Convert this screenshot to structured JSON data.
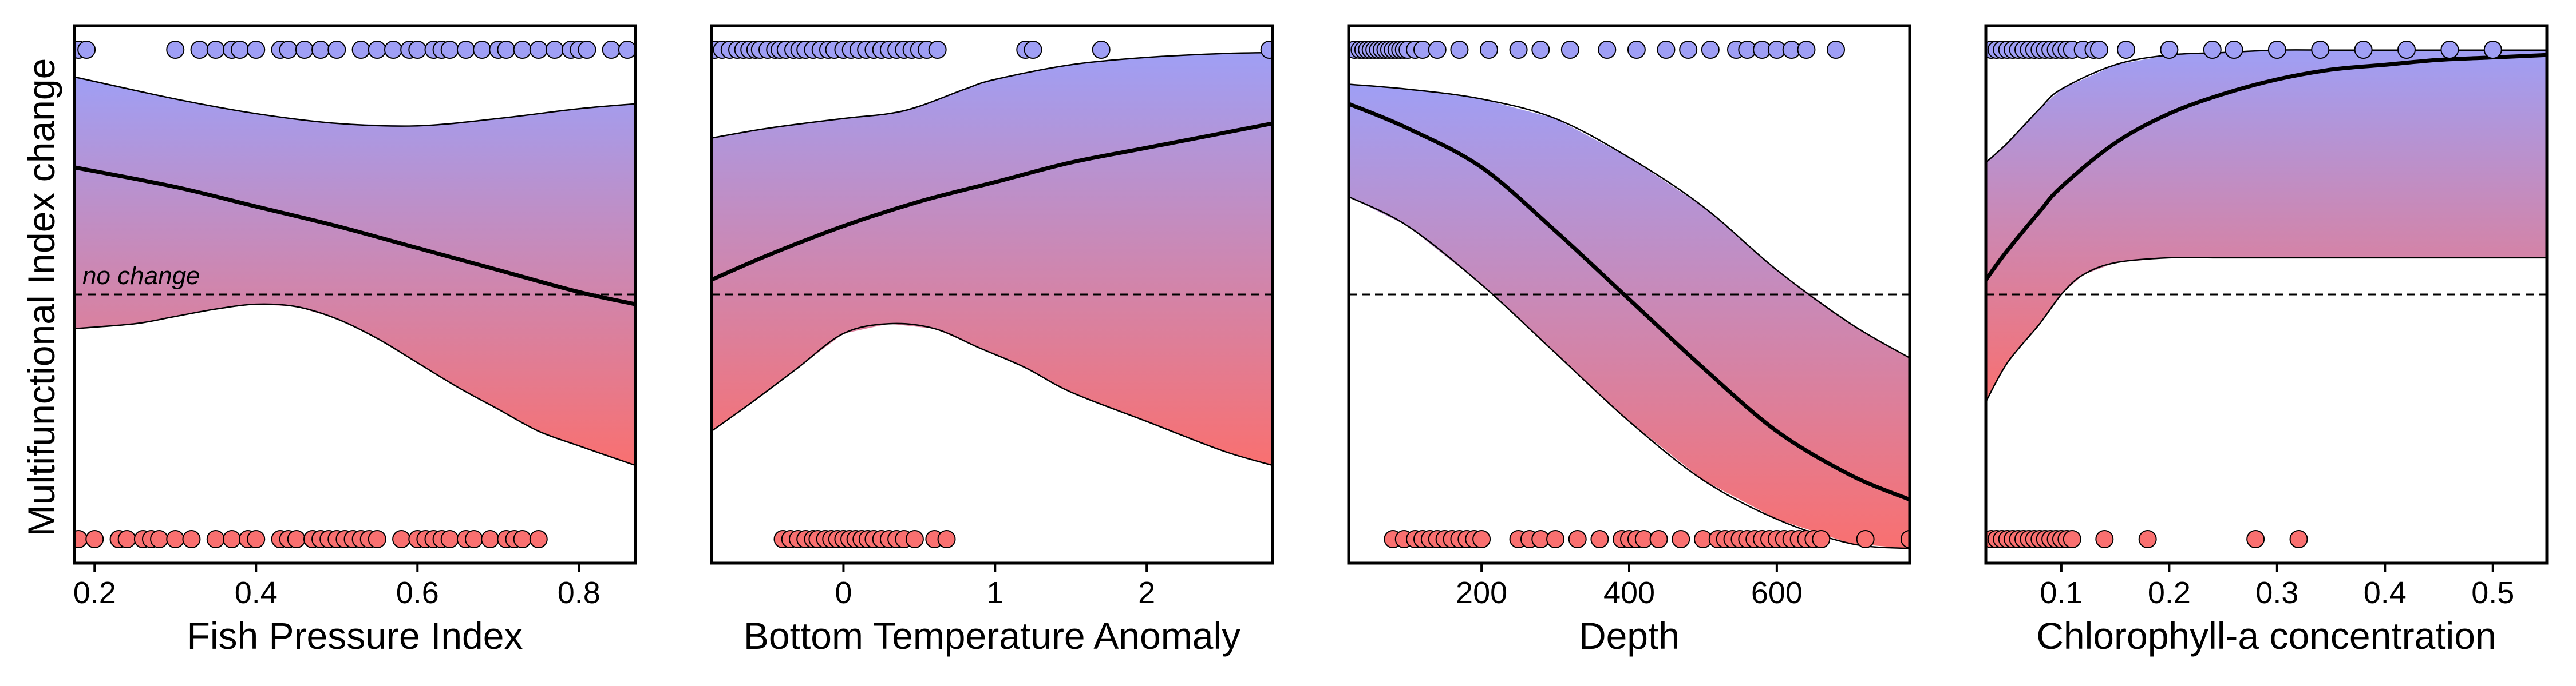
{
  "figure": {
    "ylabel": "Multifunctional Index change",
    "annotation": "no change",
    "top_color": "#9f9ff5",
    "bottom_color": "#f97070",
    "line_color": "#000000"
  },
  "chart_data": [
    {
      "type": "line",
      "xlabel": "Fish Pressure Index",
      "ylabel": "Multifunctional Index change",
      "xlim": [
        0.175,
        0.87
      ],
      "ylim": [
        -0.05,
        1.05
      ],
      "xticks": [
        0.2,
        0.4,
        0.6,
        0.8
      ],
      "xtick_labels": [
        "0.2",
        "0.4",
        "0.6",
        "0.8"
      ],
      "reference_line": 0.5,
      "curve": {
        "x": [
          0.175,
          0.3,
          0.4,
          0.5,
          0.6,
          0.7,
          0.8,
          0.87
        ],
        "y": [
          0.76,
          0.72,
          0.68,
          0.64,
          0.595,
          0.55,
          0.505,
          0.48
        ]
      },
      "band_upper": {
        "x": [
          0.175,
          0.3,
          0.4,
          0.5,
          0.6,
          0.7,
          0.8,
          0.87
        ],
        "y": [
          0.945,
          0.9,
          0.87,
          0.85,
          0.845,
          0.86,
          0.88,
          0.89
        ]
      },
      "band_lower": {
        "x": [
          0.175,
          0.25,
          0.3,
          0.35,
          0.4,
          0.45,
          0.5,
          0.55,
          0.6,
          0.65,
          0.7,
          0.75,
          0.8,
          0.87
        ],
        "y": [
          0.43,
          0.44,
          0.455,
          0.47,
          0.48,
          0.475,
          0.45,
          0.41,
          0.36,
          0.31,
          0.265,
          0.22,
          0.19,
          0.15
        ]
      },
      "points_top": [
        0.18,
        0.19,
        0.3,
        0.33,
        0.35,
        0.37,
        0.38,
        0.4,
        0.43,
        0.44,
        0.46,
        0.48,
        0.5,
        0.53,
        0.55,
        0.57,
        0.59,
        0.6,
        0.62,
        0.63,
        0.64,
        0.66,
        0.68,
        0.7,
        0.71,
        0.73,
        0.75,
        0.77,
        0.79,
        0.8,
        0.81,
        0.84,
        0.86
      ],
      "points_bottom": [
        0.18,
        0.2,
        0.23,
        0.24,
        0.26,
        0.27,
        0.28,
        0.3,
        0.32,
        0.35,
        0.37,
        0.39,
        0.4,
        0.43,
        0.44,
        0.45,
        0.47,
        0.48,
        0.49,
        0.5,
        0.51,
        0.52,
        0.53,
        0.54,
        0.55,
        0.58,
        0.6,
        0.61,
        0.62,
        0.63,
        0.64,
        0.66,
        0.67,
        0.69,
        0.71,
        0.72,
        0.73,
        0.75
      ]
    },
    {
      "type": "line",
      "xlabel": "Bottom Temperature Anomaly",
      "ylabel": "",
      "xlim": [
        -0.87,
        2.83
      ],
      "ylim": [
        -0.05,
        1.05
      ],
      "xticks": [
        0,
        1,
        2
      ],
      "xtick_labels": [
        "0",
        "1",
        "2"
      ],
      "reference_line": 0.5,
      "curve": {
        "x": [
          -0.87,
          -0.5,
          0,
          0.5,
          1,
          1.5,
          2,
          2.5,
          2.83
        ],
        "y": [
          0.53,
          0.58,
          0.64,
          0.69,
          0.73,
          0.77,
          0.8,
          0.83,
          0.85
        ]
      },
      "band_upper": {
        "x": [
          -0.87,
          -0.5,
          0,
          0.3,
          0.5,
          0.8,
          1,
          1.5,
          2,
          2.5,
          2.83
        ],
        "y": [
          0.82,
          0.84,
          0.86,
          0.87,
          0.885,
          0.92,
          0.94,
          0.97,
          0.985,
          0.993,
          0.995
        ]
      },
      "band_lower": {
        "x": [
          -0.87,
          -0.6,
          -0.3,
          0,
          0.3,
          0.6,
          0.9,
          1.2,
          1.5,
          2,
          2.5,
          2.83
        ],
        "y": [
          0.22,
          0.28,
          0.35,
          0.42,
          0.44,
          0.43,
          0.39,
          0.35,
          0.3,
          0.24,
          0.18,
          0.15
        ]
      },
      "points_top": [
        -0.85,
        -0.8,
        -0.75,
        -0.7,
        -0.66,
        -0.62,
        -0.58,
        -0.55,
        -0.5,
        -0.45,
        -0.42,
        -0.38,
        -0.33,
        -0.29,
        -0.25,
        -0.2,
        -0.15,
        -0.1,
        -0.06,
        0,
        0.05,
        0.1,
        0.15,
        0.2,
        0.25,
        0.3,
        0.35,
        0.4,
        0.45,
        0.5,
        0.55,
        0.62,
        1.2,
        1.25,
        1.7,
        2.81
      ],
      "points_bottom": [
        -0.4,
        -0.35,
        -0.3,
        -0.25,
        -0.2,
        -0.17,
        -0.12,
        -0.08,
        -0.04,
        0,
        0.04,
        0.08,
        0.12,
        0.16,
        0.2,
        0.25,
        0.3,
        0.35,
        0.4,
        0.47,
        0.6,
        0.68
      ]
    },
    {
      "type": "line",
      "xlabel": "Depth",
      "ylabel": "",
      "xlim": [
        20,
        780
      ],
      "ylim": [
        -0.05,
        1.05
      ],
      "xticks": [
        200,
        400,
        600
      ],
      "xtick_labels": [
        "200",
        "400",
        "600"
      ],
      "reference_line": 0.5,
      "curve": {
        "x": [
          20,
          100,
          200,
          300,
          400,
          500,
          600,
          700,
          780
        ],
        "y": [
          0.89,
          0.84,
          0.76,
          0.63,
          0.49,
          0.35,
          0.22,
          0.13,
          0.08
        ]
      },
      "band_upper": {
        "x": [
          20,
          100,
          200,
          300,
          400,
          500,
          600,
          700,
          780
        ],
        "y": [
          0.93,
          0.92,
          0.9,
          0.86,
          0.78,
          0.68,
          0.55,
          0.44,
          0.37
        ]
      },
      "band_lower": {
        "x": [
          20,
          100,
          200,
          300,
          400,
          500,
          600,
          700,
          780
        ],
        "y": [
          0.7,
          0.64,
          0.52,
          0.38,
          0.24,
          0.12,
          0.04,
          -0.01,
          -0.02
        ]
      },
      "points_top": [
        28,
        35,
        40,
        45,
        50,
        55,
        60,
        65,
        70,
        75,
        80,
        85,
        90,
        95,
        100,
        110,
        120,
        140,
        170,
        210,
        250,
        280,
        320,
        370,
        410,
        450,
        480,
        510,
        545,
        560,
        580,
        600,
        620,
        640,
        680
      ],
      "points_bottom": [
        80,
        95,
        110,
        120,
        130,
        140,
        150,
        160,
        170,
        180,
        190,
        200,
        250,
        265,
        280,
        300,
        330,
        360,
        390,
        400,
        410,
        420,
        440,
        470,
        500,
        520,
        530,
        540,
        550,
        560,
        570,
        580,
        590,
        600,
        610,
        620,
        630,
        640,
        650,
        660,
        720,
        780
      ]
    },
    {
      "type": "line",
      "xlabel": "Chlorophyll-a concentration",
      "ylabel": "",
      "xlim": [
        0.03,
        0.55
      ],
      "ylim": [
        -0.05,
        1.05
      ],
      "xticks": [
        0.1,
        0.2,
        0.3,
        0.4,
        0.5
      ],
      "xtick_labels": [
        "0.1",
        "0.2",
        "0.3",
        "0.4",
        "0.5"
      ],
      "reference_line": 0.5,
      "curve": {
        "x": [
          0.03,
          0.05,
          0.08,
          0.1,
          0.15,
          0.2,
          0.25,
          0.3,
          0.35,
          0.4,
          0.45,
          0.5,
          0.55
        ],
        "y": [
          0.53,
          0.59,
          0.67,
          0.72,
          0.81,
          0.87,
          0.91,
          0.94,
          0.96,
          0.97,
          0.98,
          0.985,
          0.99
        ]
      },
      "band_upper": {
        "x": [
          0.03,
          0.05,
          0.08,
          0.1,
          0.15,
          0.2,
          0.25,
          0.3,
          0.35,
          0.4,
          0.45,
          0.5,
          0.55
        ],
        "y": [
          0.77,
          0.81,
          0.88,
          0.92,
          0.97,
          0.99,
          0.995,
          1.0,
          1.0,
          1.0,
          1.0,
          1.0,
          1.0
        ]
      },
      "band_lower": {
        "x": [
          0.03,
          0.05,
          0.08,
          0.1,
          0.12,
          0.15,
          0.2,
          0.25,
          0.3,
          0.35,
          0.4,
          0.45,
          0.5,
          0.55
        ],
        "y": [
          0.28,
          0.36,
          0.44,
          0.5,
          0.54,
          0.565,
          0.575,
          0.575,
          0.575,
          0.575,
          0.575,
          0.575,
          0.575,
          0.575
        ]
      },
      "points_top": [
        0.035,
        0.04,
        0.045,
        0.05,
        0.055,
        0.06,
        0.065,
        0.07,
        0.075,
        0.08,
        0.085,
        0.09,
        0.095,
        0.1,
        0.105,
        0.11,
        0.12,
        0.13,
        0.135,
        0.16,
        0.2,
        0.24,
        0.26,
        0.3,
        0.34,
        0.38,
        0.42,
        0.46,
        0.5
      ],
      "points_bottom": [
        0.035,
        0.04,
        0.045,
        0.05,
        0.055,
        0.06,
        0.065,
        0.07,
        0.075,
        0.08,
        0.085,
        0.09,
        0.095,
        0.1,
        0.105,
        0.11,
        0.14,
        0.18,
        0.28,
        0.32
      ]
    }
  ]
}
